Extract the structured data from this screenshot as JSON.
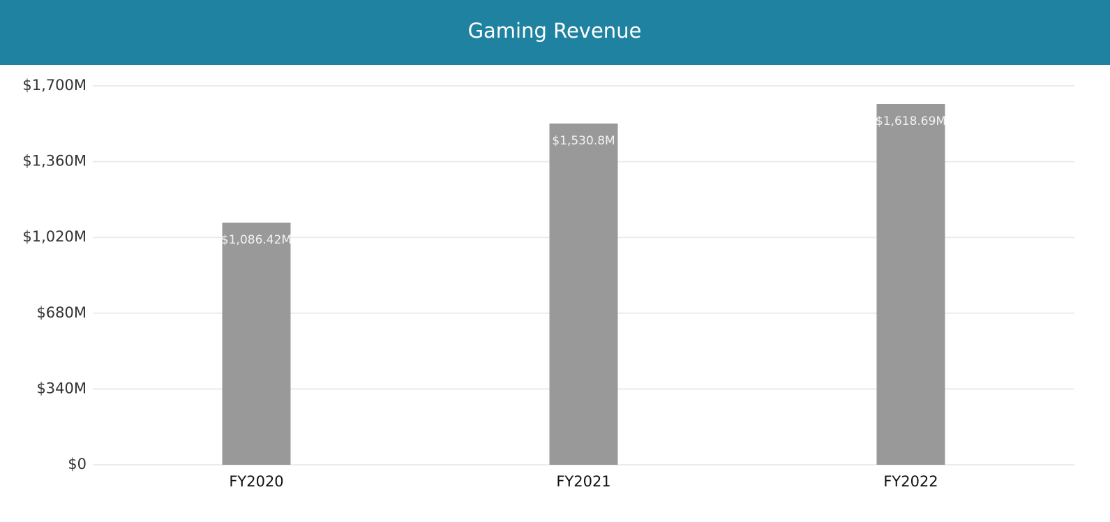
{
  "chart_data": {
    "type": "bar",
    "title": "Gaming Revenue",
    "categories": [
      "FY2020",
      "FY2021",
      "FY2022"
    ],
    "values": [
      1086.42,
      1530.8,
      1618.69
    ],
    "value_labels": [
      "$1,086.42M",
      "$1,530.8M",
      "$1,618.69M"
    ],
    "color": "#999999",
    "ylim": [
      0,
      1700
    ],
    "yticks": [
      {
        "value": 0,
        "label": "$0"
      },
      {
        "value": 340,
        "label": "$340M"
      },
      {
        "value": 680,
        "label": "$680M"
      },
      {
        "value": 1020,
        "label": "$1,020M"
      },
      {
        "value": 1360,
        "label": "$1,360M"
      },
      {
        "value": 1700,
        "label": "$1,700M"
      }
    ],
    "grid": true
  }
}
